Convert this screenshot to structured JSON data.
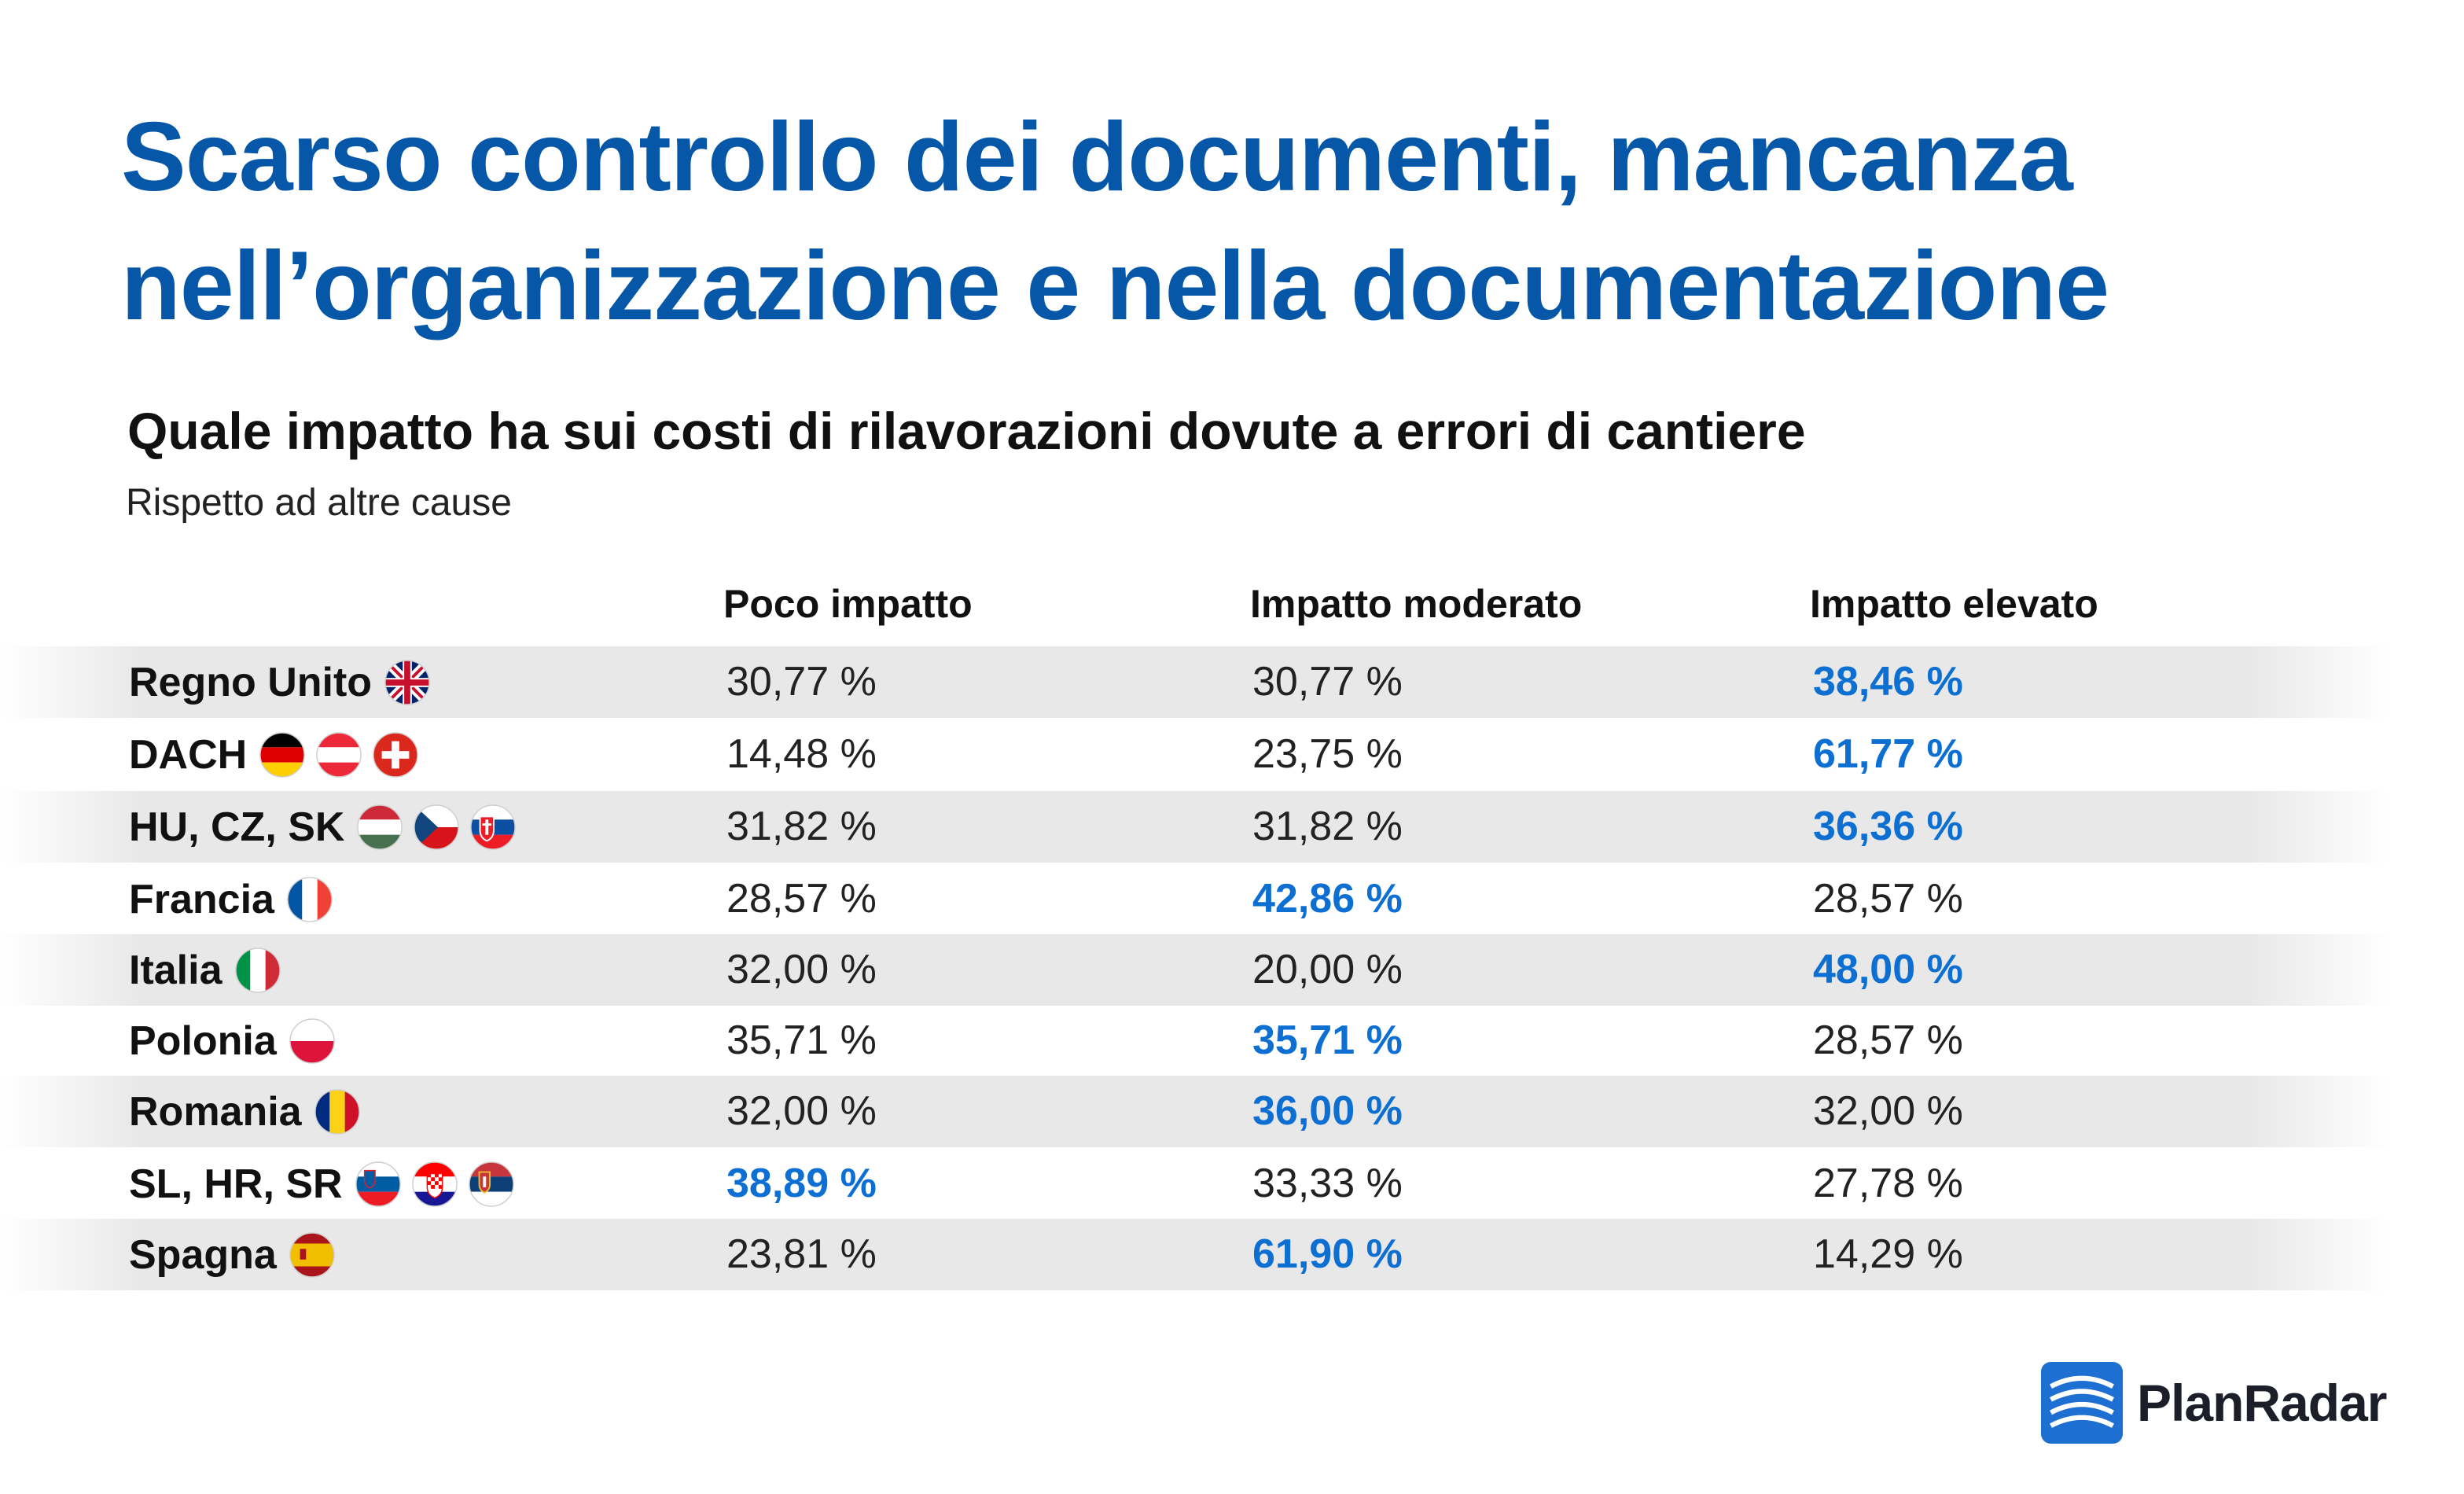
{
  "title_lines": [
    "Scarso controllo dei documenti, mancanza",
    "nell’organizzazione e nella documentazione"
  ],
  "brand": "PlanRadar",
  "colors": {
    "title": "#0757a8",
    "highlight": "#0c6fd1",
    "row_stripe": "#e8e8e8"
  },
  "chart_data": {
    "type": "table",
    "title": "Quale impatto ha sui costi di rilavorazioni dovute a errori di cantiere",
    "subtitle": "Rispetto ad altre cause",
    "columns": [
      "Poco impatto",
      "Impatto moderato",
      "Impatto elevato"
    ],
    "unit": "%",
    "rows": [
      {
        "label": "Regno Unito",
        "flags": [
          "uk-flag-icon"
        ],
        "values": [
          "30,77 %",
          "30,77 %",
          "38,46 %"
        ],
        "highlight": 2
      },
      {
        "label": "DACH",
        "flags": [
          "germany-flag-icon",
          "austria-flag-icon",
          "switzerland-flag-icon"
        ],
        "values": [
          "14,48 %",
          "23,75 %",
          "61,77 %"
        ],
        "highlight": 2
      },
      {
        "label": "HU, CZ, SK",
        "flags": [
          "hungary-flag-icon",
          "czechia-flag-icon",
          "slovakia-flag-icon"
        ],
        "values": [
          "31,82 %",
          "31,82 %",
          "36,36 %"
        ],
        "highlight": 2
      },
      {
        "label": "Francia",
        "flags": [
          "france-flag-icon"
        ],
        "values": [
          "28,57 %",
          "42,86 %",
          "28,57 %"
        ],
        "highlight": 1
      },
      {
        "label": "Italia",
        "flags": [
          "italy-flag-icon"
        ],
        "values": [
          "32,00 %",
          "20,00 %",
          "48,00 %"
        ],
        "highlight": 2
      },
      {
        "label": "Polonia",
        "flags": [
          "poland-flag-icon"
        ],
        "values": [
          "35,71 %",
          "35,71 %",
          "28,57 %"
        ],
        "highlight": 1
      },
      {
        "label": "Romania",
        "flags": [
          "romania-flag-icon"
        ],
        "values": [
          "32,00 %",
          "36,00 %",
          "32,00 %"
        ],
        "highlight": 1
      },
      {
        "label": "SL, HR, SR",
        "flags": [
          "slovenia-flag-icon",
          "croatia-flag-icon",
          "serbia-flag-icon"
        ],
        "values": [
          "38,89 %",
          "33,33 %",
          "27,78 %"
        ],
        "highlight": 0
      },
      {
        "label": "Spagna",
        "flags": [
          "spain-flag-icon"
        ],
        "values": [
          "23,81 %",
          "61,90 %",
          "14,29 %"
        ],
        "highlight": 1
      }
    ]
  }
}
